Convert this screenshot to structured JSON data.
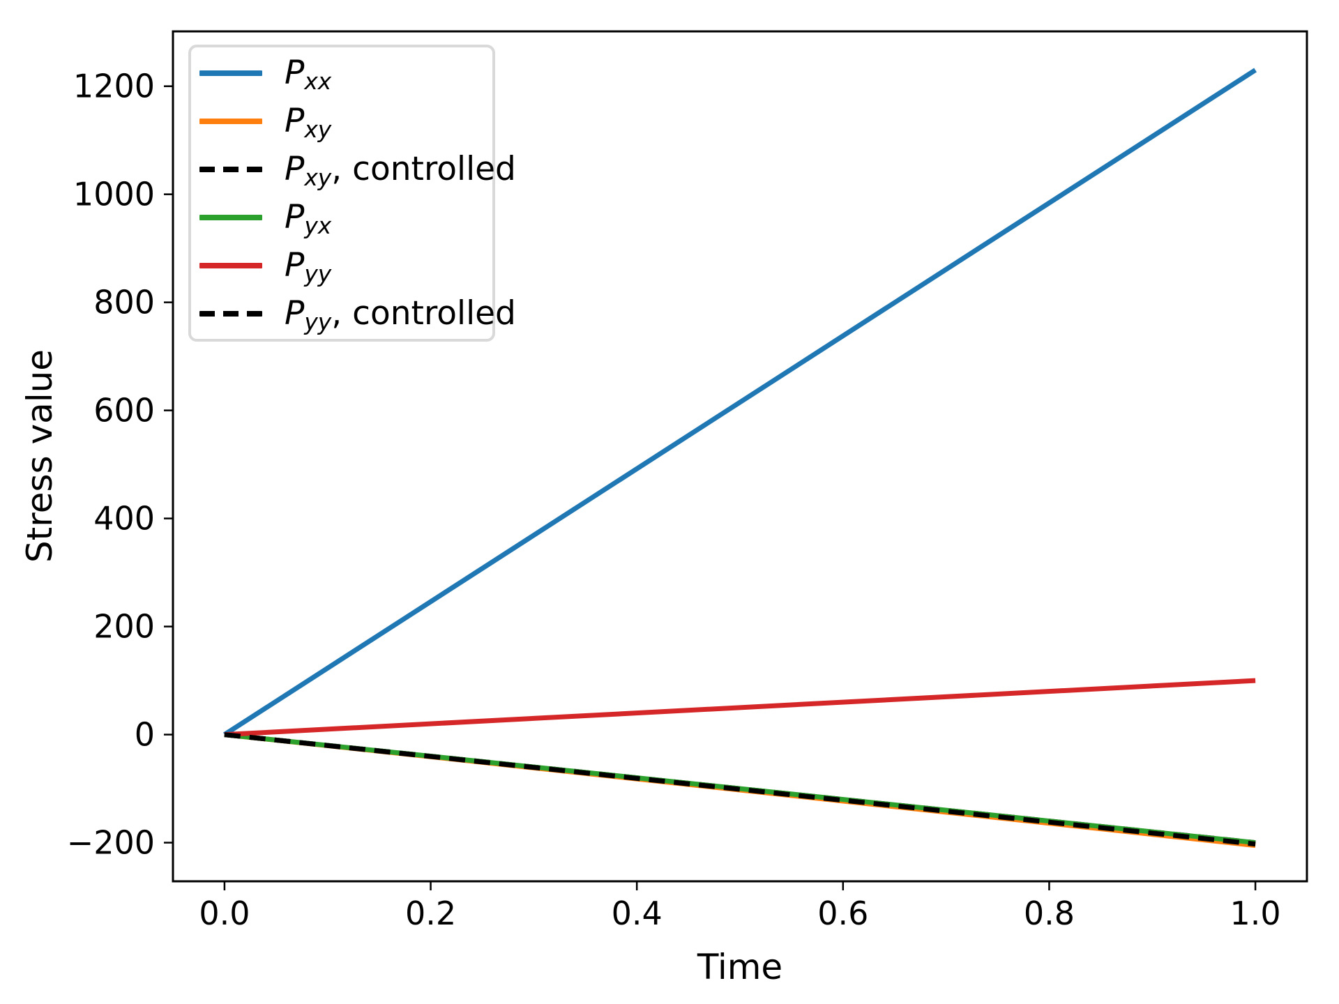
{
  "chart_data": {
    "type": "line",
    "title": "",
    "xlabel": "Time",
    "ylabel": "Stress value",
    "xlim": [
      -0.05,
      1.05
    ],
    "ylim": [
      -271.5,
      1301.5
    ],
    "xticks": [
      0.0,
      0.2,
      0.4,
      0.6,
      0.8,
      1.0
    ],
    "yticks": [
      -200,
      0,
      200,
      400,
      600,
      800,
      1000,
      1200
    ],
    "grid": false,
    "legend_position": "upper left",
    "series": [
      {
        "name": "P_xx",
        "color": "#1f77b4",
        "style": "solid",
        "x": [
          0,
          1
        ],
        "y": [
          0,
          1230
        ]
      },
      {
        "name": "P_xy",
        "color": "#ff7f0e",
        "style": "solid",
        "x": [
          0,
          1
        ],
        "y": [
          0,
          -200
        ]
      },
      {
        "name": "P_xy, controlled",
        "color": "#000000",
        "style": "dashed",
        "x": [
          0,
          1
        ],
        "y": [
          0,
          -200
        ]
      },
      {
        "name": "P_yx",
        "color": "#2ca02c",
        "style": "solid",
        "x": [
          0,
          1
        ],
        "y": [
          0,
          -200
        ]
      },
      {
        "name": "P_yy",
        "color": "#d62728",
        "style": "solid",
        "x": [
          0,
          1
        ],
        "y": [
          0,
          100
        ]
      },
      {
        "name": "P_yy, controlled",
        "color": "#000000",
        "style": "dashed",
        "x": [
          0,
          1
        ],
        "y": [
          0,
          -200
        ]
      }
    ]
  },
  "legend": {
    "items": [
      {
        "base": "P",
        "sub": "xx",
        "suffix": "",
        "color": "#1f77b4",
        "dash": false
      },
      {
        "base": "P",
        "sub": "xy",
        "suffix": "",
        "color": "#ff7f0e",
        "dash": false
      },
      {
        "base": "P",
        "sub": "xy",
        "suffix": ", controlled",
        "color": "#000000",
        "dash": true
      },
      {
        "base": "P",
        "sub": "yx",
        "suffix": "",
        "color": "#2ca02c",
        "dash": false
      },
      {
        "base": "P",
        "sub": "yy",
        "suffix": "",
        "color": "#d62728",
        "dash": false
      },
      {
        "base": "P",
        "sub": "yy",
        "suffix": ", controlled",
        "color": "#000000",
        "dash": true
      }
    ]
  },
  "colors": {
    "spine": "#000000",
    "tick": "#000000",
    "legend_border": "#d9d9d9",
    "background": "#ffffff"
  }
}
